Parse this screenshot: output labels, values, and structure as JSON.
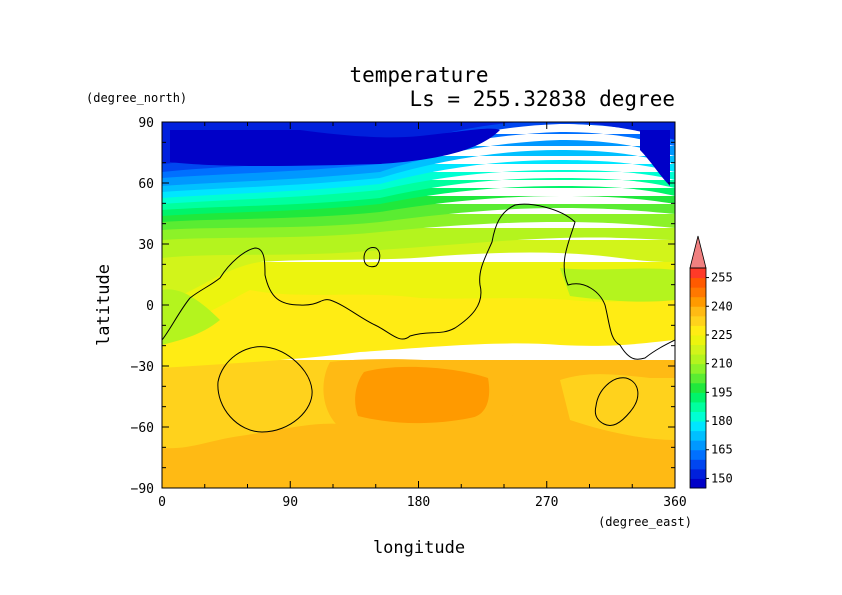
{
  "chart_data": {
    "type": "heatmap",
    "title": "temperature",
    "subtitle": "Ls = 255.32838 degree",
    "xlabel": "longitude",
    "ylabel": "latitude",
    "x_unit": "(degree_east)",
    "y_unit": "(degree_north)",
    "xlim": [
      0,
      360
    ],
    "ylim": [
      -90,
      90
    ],
    "x_ticks": [
      0,
      90,
      180,
      270,
      360
    ],
    "y_ticks": [
      90,
      60,
      30,
      0,
      -30,
      -60,
      -90
    ],
    "colorbar": {
      "levels": [
        145,
        150,
        155,
        160,
        165,
        170,
        175,
        180,
        185,
        190,
        195,
        200,
        205,
        210,
        215,
        220,
        225,
        230,
        235,
        240,
        245,
        250,
        255,
        260
      ],
      "tick_values": [
        150,
        165,
        180,
        195,
        210,
        225,
        240,
        255
      ],
      "colors": [
        "#0000c8",
        "#0020dc",
        "#0046f0",
        "#0070ff",
        "#0098ff",
        "#00c0ff",
        "#00e6ff",
        "#00ffd2",
        "#00ff9e",
        "#00f46a",
        "#20e83c",
        "#5aec32",
        "#8cf228",
        "#b4f41e",
        "#d2f41a",
        "#ecf40e",
        "#ffec14",
        "#ffd21c",
        "#ffba14",
        "#ff9a00",
        "#ff7800",
        "#ff5a00",
        "#ff3a28",
        "#f08080"
      ],
      "extend": "max"
    },
    "temperature_by_latitude_band": {
      "latitudes": [
        85,
        75,
        65,
        55,
        45,
        35,
        25,
        15,
        5,
        -5,
        -15,
        -25,
        -35,
        -45,
        -55,
        -65,
        -75,
        -85
      ],
      "typical_values": [
        148,
        150,
        158,
        170,
        185,
        200,
        210,
        213,
        215,
        216,
        220,
        225,
        230,
        232,
        230,
        228,
        226,
        226
      ]
    },
    "warm_region": {
      "lon_range": [
        120,
        220
      ],
      "lat_range": [
        -62,
        -25
      ],
      "value": 240
    },
    "coastline_contours": "topography contour lines (black)"
  }
}
